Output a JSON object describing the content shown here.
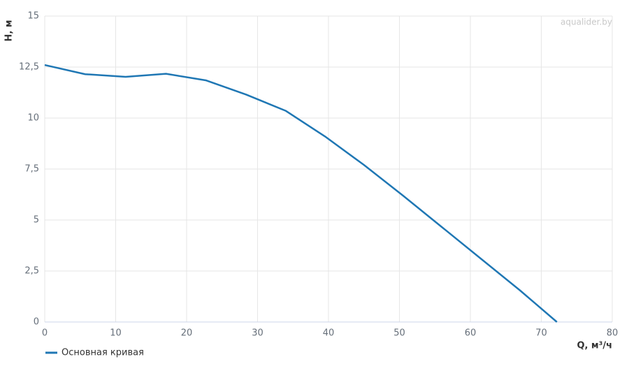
{
  "chart_data": {
    "type": "line",
    "x_label": "Q, м³/ч",
    "y_label": "H, м",
    "watermark": "aqualider.by",
    "x": [
      0,
      5.7,
      11.4,
      17.1,
      22.7,
      28.4,
      34,
      39.5,
      45,
      50.5,
      56,
      61.5,
      67,
      72.2
    ],
    "series": [
      {
        "name": "Основная кривая",
        "color": "#1f77b4",
        "values": [
          12.6,
          12.15,
          12.02,
          12.17,
          11.85,
          11.15,
          10.35,
          9.1,
          7.7,
          6.2,
          4.65,
          3.1,
          1.55,
          0
        ]
      }
    ],
    "xlim": [
      0,
      80
    ],
    "xticks": [
      0,
      10,
      20,
      30,
      40,
      50,
      60,
      70,
      80
    ],
    "ylim": [
      0,
      15
    ],
    "yticks": [
      0,
      {
        "value": 2.5,
        "label": "2,5"
      },
      5,
      {
        "value": 7.5,
        "label": "7,5"
      },
      10,
      {
        "value": 12.5,
        "label": "12,5"
      },
      15
    ],
    "grid": true
  }
}
